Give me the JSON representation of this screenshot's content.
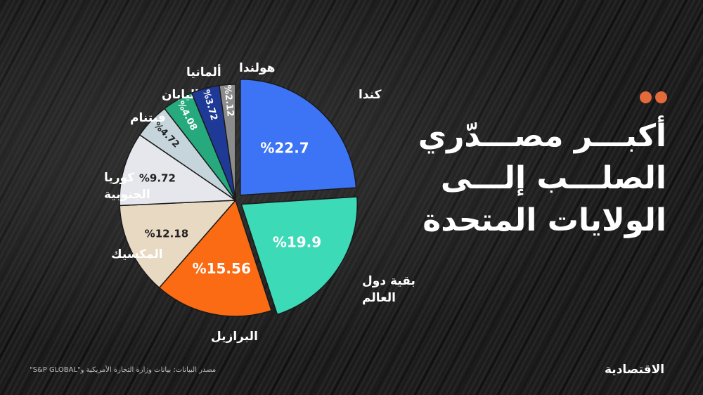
{
  "title_lines": [
    "أكبـــر مصـــدّري",
    "الصلـــب إلـــى",
    "الولايات المتحدة"
  ],
  "source": "مصدر البيانات: بيانات وزارة التجارة الأمريكية و\"S&P GLOBAL\"",
  "logo": "الاقتصادية",
  "accent_color": "#e46a3c",
  "chart_data": {
    "type": "pie",
    "unit": "%",
    "start_angle_deg": 0,
    "direction": "clockwise",
    "slices": [
      {
        "label": "كندا",
        "value": 22.7,
        "value_label": "%22.7",
        "color": "#3d74f5",
        "exploded": true
      },
      {
        "label": "بقية دول العالم",
        "value": 19.9,
        "value_label": "%19.9",
        "color": "#3ddab8",
        "exploded": true
      },
      {
        "label": "البرازيل",
        "value": 15.56,
        "value_label": "%15.56",
        "color": "#fb6b14",
        "exploded": false
      },
      {
        "label": "المكسيك",
        "value": 12.18,
        "value_label": "%12.18",
        "color": "#e8d9c3",
        "exploded": false
      },
      {
        "label": "كوريا الجنوبية",
        "value": 9.72,
        "value_label": "%9.72",
        "color": "#e6e7ec",
        "exploded": false
      },
      {
        "label": "فيتنام",
        "value": 4.72,
        "value_label": "%4.72",
        "color": "#c6d5db",
        "exploded": false
      },
      {
        "label": "اليابان",
        "value": 4.08,
        "value_label": "%4.08",
        "color": "#27a97e",
        "exploded": false
      },
      {
        "label": "ألمانيا",
        "value": 3.72,
        "value_label": "%3.72",
        "color": "#1f3a96",
        "exploded": false
      },
      {
        "label": "هولندا",
        "value": 2.12,
        "value_label": "%2.12",
        "color": "#8c8c8c",
        "exploded": false
      }
    ]
  }
}
